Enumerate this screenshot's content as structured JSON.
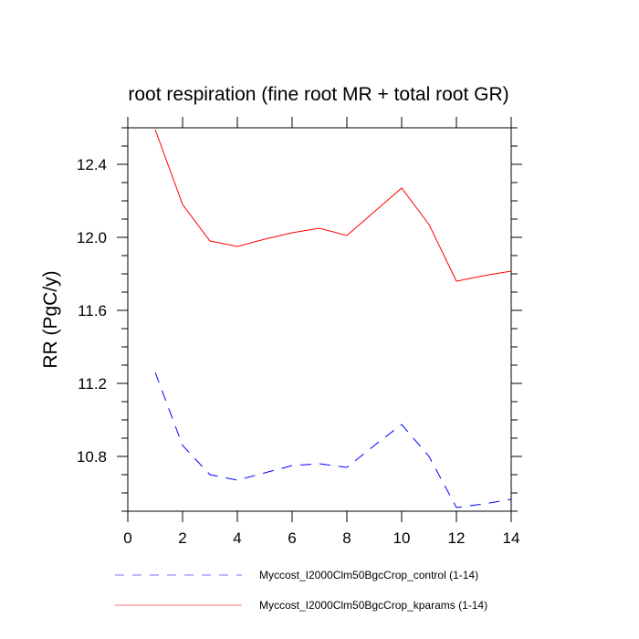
{
  "chart_data": {
    "type": "line",
    "title": "root respiration (fine root MR + total root GR)",
    "xlabel": "",
    "ylabel": "RR  (PgC/y)",
    "xlim": [
      0,
      14
    ],
    "ylim": [
      10.5,
      12.6
    ],
    "xticks": [
      0,
      2,
      4,
      6,
      8,
      10,
      12,
      14
    ],
    "xtick_labels": [
      "0",
      "2",
      "4",
      "6",
      "8",
      "10",
      "12",
      "14"
    ],
    "yticks": [
      10.8,
      11.2,
      11.6,
      12.0,
      12.4
    ],
    "ytick_labels": [
      "10.8",
      "11.2",
      "11.6",
      "12.0",
      "12.4"
    ],
    "y_minor_step": 0.1,
    "grid": false,
    "legend_position": "bottom",
    "x": [
      1,
      2,
      3,
      4,
      5,
      6,
      7,
      8,
      9,
      10,
      11,
      12,
      13,
      14
    ],
    "series": [
      {
        "name": "Myccost_I2000Clm50BgcCrop_control (1-14)",
        "color": "#0000ff",
        "style": "dashed",
        "values": [
          11.26,
          10.86,
          10.7,
          10.67,
          10.71,
          10.75,
          10.76,
          10.74,
          10.86,
          10.975,
          10.8,
          10.52,
          10.54,
          10.565
        ]
      },
      {
        "name": "Myccost_I2000Clm50BgcCrop_kparams (1-14)",
        "color": "#ff0000",
        "style": "solid",
        "values": [
          12.59,
          12.18,
          11.98,
          11.95,
          11.99,
          12.025,
          12.05,
          12.01,
          12.14,
          12.27,
          12.07,
          11.76,
          11.79,
          11.815
        ]
      }
    ]
  }
}
